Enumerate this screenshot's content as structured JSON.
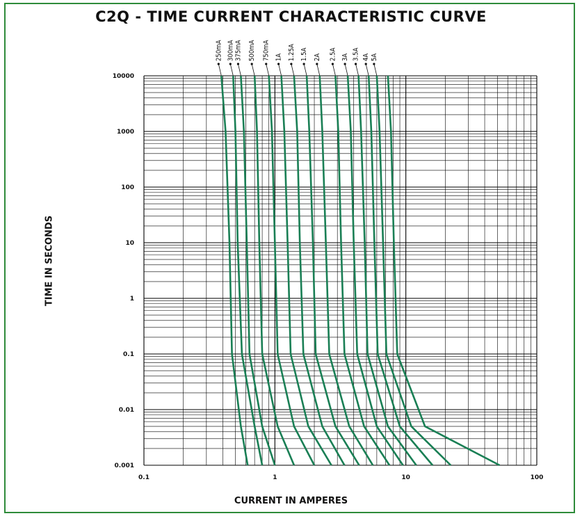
{
  "colors": {
    "curve": "#1a7f55",
    "frame": "#2e8b3a",
    "grid": "#000000"
  },
  "chart_data": {
    "type": "line",
    "title": "C2Q - TIME CURRENT CHARACTERISTIC CURVE",
    "xlabel": "CURRENT IN AMPERES",
    "ylabel": "TIME IN SECONDS",
    "xscale": "log",
    "yscale": "log",
    "xlim": [
      0.1,
      100
    ],
    "ylim": [
      0.001,
      10000
    ],
    "xticks": [
      0.1,
      1,
      10,
      100
    ],
    "xtick_labels": [
      "0.1",
      "1",
      "10",
      "100"
    ],
    "yticks": [
      10000,
      1000,
      100,
      10,
      1,
      0.1,
      0.01,
      0.001
    ],
    "ytick_labels": [
      "10000",
      "1000",
      "100",
      "10",
      "1",
      "0.1",
      "0.01",
      "0.001"
    ],
    "grid": true,
    "series": [
      {
        "name": "250mA",
        "x": [
          0.39,
          0.42,
          0.45,
          0.47,
          0.55,
          0.62
        ],
        "y": [
          10000,
          1000,
          10,
          0.1,
          0.005,
          0.001
        ]
      },
      {
        "name": "300mA",
        "x": [
          0.48,
          0.5,
          0.52,
          0.56,
          0.7,
          0.8
        ],
        "y": [
          10000,
          1000,
          10,
          0.1,
          0.005,
          0.001
        ]
      },
      {
        "name": "375mA",
        "x": [
          0.55,
          0.58,
          0.61,
          0.64,
          0.8,
          1.0
        ],
        "y": [
          10000,
          1000,
          10,
          0.1,
          0.005,
          0.001
        ]
      },
      {
        "name": "500mA",
        "x": [
          0.7,
          0.73,
          0.76,
          0.8,
          1.05,
          1.4
        ],
        "y": [
          10000,
          1000,
          10,
          0.1,
          0.005,
          0.001
        ]
      },
      {
        "name": "750mA",
        "x": [
          0.9,
          0.95,
          1.0,
          1.05,
          1.4,
          2.0
        ],
        "y": [
          10000,
          1000,
          10,
          0.1,
          0.005,
          0.001
        ]
      },
      {
        "name": "1A",
        "x": [
          1.12,
          1.18,
          1.25,
          1.32,
          1.8,
          2.7
        ],
        "y": [
          10000,
          1000,
          10,
          0.1,
          0.005,
          0.001
        ]
      },
      {
        "name": "1.25A",
        "x": [
          1.4,
          1.48,
          1.55,
          1.65,
          2.3,
          3.4
        ],
        "y": [
          10000,
          1000,
          10,
          0.1,
          0.005,
          0.001
        ]
      },
      {
        "name": "1.5A",
        "x": [
          1.75,
          1.83,
          1.95,
          2.05,
          2.9,
          4.4
        ],
        "y": [
          10000,
          1000,
          10,
          0.1,
          0.005,
          0.001
        ]
      },
      {
        "name": "2A",
        "x": [
          2.2,
          2.3,
          2.45,
          2.6,
          3.7,
          5.6
        ],
        "y": [
          10000,
          1000,
          10,
          0.1,
          0.005,
          0.001
        ]
      },
      {
        "name": "2.5A",
        "x": [
          2.9,
          3.05,
          3.2,
          3.4,
          4.8,
          7.5
        ],
        "y": [
          10000,
          1000,
          10,
          0.1,
          0.005,
          0.001
        ]
      },
      {
        "name": "3A",
        "x": [
          3.6,
          3.8,
          4.0,
          4.25,
          6.0,
          9.5
        ],
        "y": [
          10000,
          1000,
          10,
          0.1,
          0.005,
          0.001
        ]
      },
      {
        "name": "3.5A",
        "x": [
          4.35,
          4.55,
          4.85,
          5.1,
          7.3,
          12
        ],
        "y": [
          10000,
          1000,
          10,
          0.1,
          0.005,
          0.001
        ]
      },
      {
        "name": "4A",
        "x": [
          5.2,
          5.45,
          5.75,
          6.1,
          9.0,
          16
        ],
        "y": [
          10000,
          1000,
          10,
          0.1,
          0.005,
          0.001
        ]
      },
      {
        "name": "5A",
        "x": [
          6.0,
          6.3,
          6.7,
          7.1,
          11,
          22
        ],
        "y": [
          10000,
          1000,
          10,
          0.1,
          0.005,
          0.001
        ]
      },
      {
        "name": "",
        "x": [
          7.3,
          7.7,
          8.1,
          8.6,
          14,
          52
        ],
        "y": [
          10000,
          1000,
          10,
          0.1,
          0.005,
          0.001
        ]
      }
    ]
  }
}
